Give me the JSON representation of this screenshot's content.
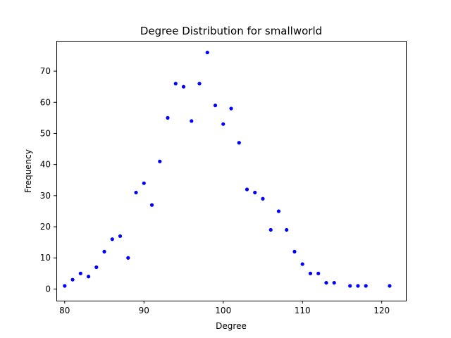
{
  "chart_data": {
    "type": "scatter",
    "title": "Degree Distribution for smallworld",
    "xlabel": "Degree",
    "ylabel": "Frequency",
    "xlim": [
      78.95,
      123.05
    ],
    "ylim": [
      -3.75,
      79.75
    ],
    "x_ticks": [
      80,
      90,
      100,
      110,
      120
    ],
    "y_ticks": [
      0,
      10,
      20,
      30,
      40,
      50,
      60,
      70
    ],
    "grid": false,
    "marker_color": "#0000ff",
    "points": [
      {
        "x": 80,
        "y": 1
      },
      {
        "x": 81,
        "y": 3
      },
      {
        "x": 82,
        "y": 5
      },
      {
        "x": 83,
        "y": 4
      },
      {
        "x": 84,
        "y": 7
      },
      {
        "x": 85,
        "y": 12
      },
      {
        "x": 86,
        "y": 16
      },
      {
        "x": 87,
        "y": 17
      },
      {
        "x": 88,
        "y": 10
      },
      {
        "x": 89,
        "y": 31
      },
      {
        "x": 90,
        "y": 34
      },
      {
        "x": 91,
        "y": 27
      },
      {
        "x": 92,
        "y": 41
      },
      {
        "x": 93,
        "y": 55
      },
      {
        "x": 94,
        "y": 66
      },
      {
        "x": 95,
        "y": 65
      },
      {
        "x": 96,
        "y": 54
      },
      {
        "x": 97,
        "y": 66
      },
      {
        "x": 98,
        "y": 76
      },
      {
        "x": 99,
        "y": 59
      },
      {
        "x": 100,
        "y": 53
      },
      {
        "x": 101,
        "y": 58
      },
      {
        "x": 102,
        "y": 47
      },
      {
        "x": 103,
        "y": 32
      },
      {
        "x": 104,
        "y": 31
      },
      {
        "x": 105,
        "y": 29
      },
      {
        "x": 106,
        "y": 19
      },
      {
        "x": 107,
        "y": 25
      },
      {
        "x": 108,
        "y": 19
      },
      {
        "x": 109,
        "y": 12
      },
      {
        "x": 110,
        "y": 8
      },
      {
        "x": 111,
        "y": 5
      },
      {
        "x": 112,
        "y": 5
      },
      {
        "x": 113,
        "y": 2
      },
      {
        "x": 114,
        "y": 2
      },
      {
        "x": 116,
        "y": 1
      },
      {
        "x": 117,
        "y": 1
      },
      {
        "x": 118,
        "y": 1
      },
      {
        "x": 121,
        "y": 1
      }
    ]
  }
}
